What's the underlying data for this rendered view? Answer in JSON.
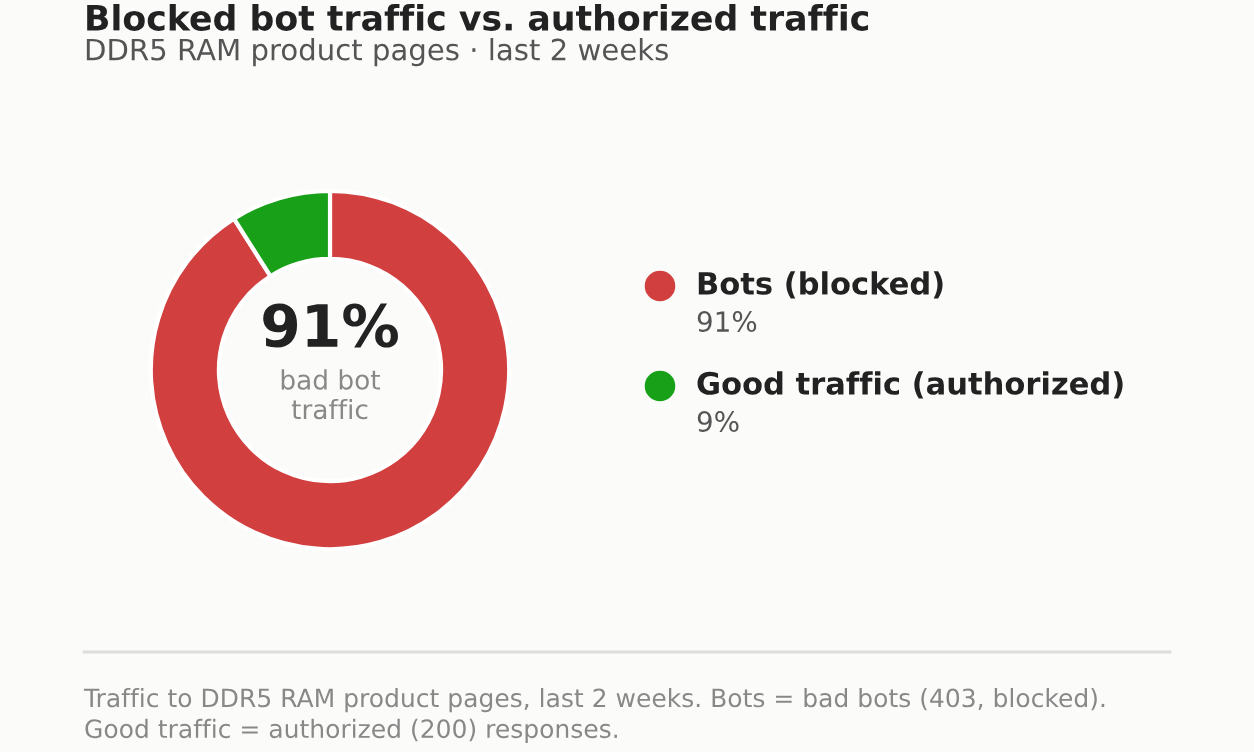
{
  "chart_data": {
    "type": "donut",
    "title": "Blocked bot traffic vs. authorized traffic",
    "subtitle": "DDR5 RAM product pages · last 2 weeks",
    "categories": [
      "Bots (blocked)",
      "Good traffic (authorized)"
    ],
    "values": [
      91,
      9
    ],
    "colors": [
      "#d23f3f",
      "#18a018"
    ],
    "value_labels": [
      "91%",
      "9%"
    ],
    "legend": "right",
    "annotations": [
      "91%",
      "bad bot\ntraffic",
      "Traffic to DDR5 RAM product pages, last 2 weeks. Bots = bad bots (403, blocked).\nGood traffic = authorized (200) responses."
    ]
  }
}
